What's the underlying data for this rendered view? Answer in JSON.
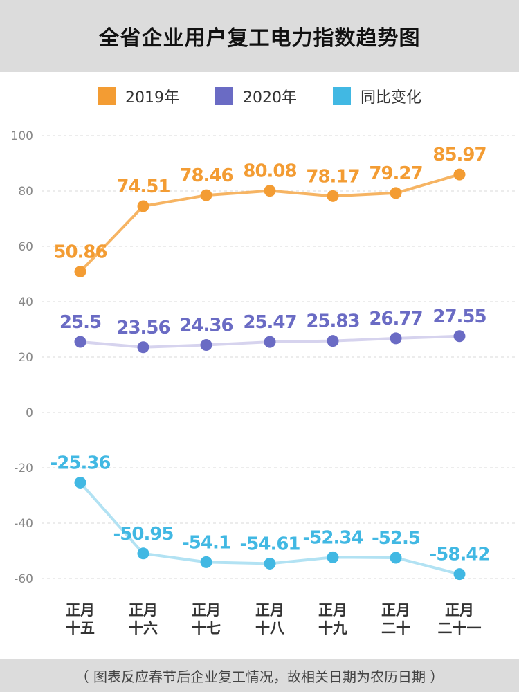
{
  "header": {
    "title": "全省企业用户复工电力指数趋势图"
  },
  "footer": {
    "note": "（ 图表反应春节后企业复工情况，故相关日期为农历日期 ）"
  },
  "chart_data": {
    "type": "line",
    "title": "全省企业用户复工电力指数趋势图",
    "categories": [
      [
        "正月",
        "十五"
      ],
      [
        "正月",
        "十六"
      ],
      [
        "正月",
        "十七"
      ],
      [
        "正月",
        "十八"
      ],
      [
        "正月",
        "十九"
      ],
      [
        "正月",
        "二十"
      ],
      [
        "正月",
        "二十一"
      ]
    ],
    "y_ticks": [
      100,
      80,
      60,
      40,
      20,
      0,
      -20,
      -40,
      -60
    ],
    "ylim": [
      -60,
      100
    ],
    "grid": true,
    "legend_position": "top-center",
    "series": [
      {
        "name": "2019年",
        "color": "#f39c33",
        "line_color": "#f6b463",
        "values": [
          50.86,
          74.51,
          78.46,
          80.08,
          78.17,
          79.27,
          85.97
        ],
        "labels": [
          "50.86",
          "74.51",
          "78.46",
          "80.08",
          "78.17",
          "79.27",
          "85.97"
        ]
      },
      {
        "name": "2020年",
        "color": "#6a6bc4",
        "line_color": "#d6d3ee",
        "values": [
          25.5,
          23.56,
          24.36,
          25.47,
          25.83,
          26.77,
          27.55
        ],
        "labels": [
          "25.5",
          "23.56",
          "24.36",
          "25.47",
          "25.83",
          "26.77",
          "27.55"
        ]
      },
      {
        "name": "同比变化",
        "color": "#41b8e3",
        "line_color": "#b2e2f3",
        "values": [
          -25.36,
          -50.95,
          -54.1,
          -54.61,
          -52.34,
          -52.5,
          -58.42
        ],
        "labels": [
          "-25.36",
          "-50.95",
          "-54.1",
          "-54.61",
          "-52.34",
          "-52.5",
          "-58.42"
        ]
      }
    ]
  }
}
